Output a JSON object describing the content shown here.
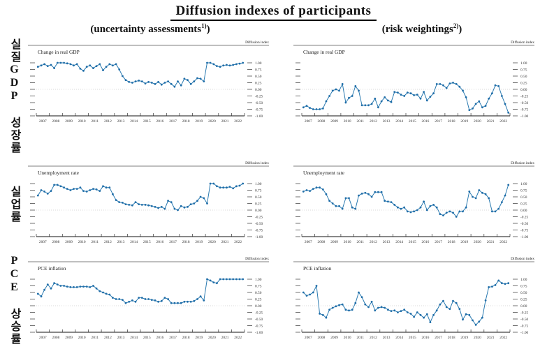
{
  "header": {
    "title": "Diffusion indexes of participants",
    "left_subtitle": {
      "text": "(uncertainty assessments",
      "sup": "1)",
      "close": ")"
    },
    "right_subtitle": {
      "text": "(risk weightings",
      "sup": "2)",
      "close": ")"
    }
  },
  "row_labels": [
    "실질GDP 성장률",
    "실업률",
    "PCE 상승률"
  ],
  "colors": {
    "line": "#2a7ab0",
    "dot": "#1f6da8",
    "zero_line": "#b5b5b5",
    "axis": "#111111"
  },
  "chart_data": [
    {
      "type": "line",
      "title": "Change in real GDP",
      "column": "uncertainty assessments",
      "axis_label": "Diffusion index",
      "frequency": "quarterly",
      "ylim": [
        -1.0,
        1.0
      ],
      "yticks": [
        "1.00",
        "0.75",
        "0.50",
        "0.25",
        "0.00",
        "-0.25",
        "-0.50",
        "-0.75",
        "-1.00"
      ],
      "years": [
        2007,
        2008,
        2009,
        2010,
        2011,
        2012,
        2013,
        2014,
        2015,
        2016,
        2017,
        2018,
        2019,
        2020,
        2021,
        2022
      ],
      "values": [
        0.85,
        0.9,
        0.95,
        0.88,
        0.92,
        0.8,
        1.0,
        1.0,
        1.0,
        0.98,
        0.95,
        0.9,
        0.95,
        0.78,
        0.7,
        0.85,
        0.9,
        0.8,
        0.88,
        0.95,
        0.72,
        0.85,
        0.95,
        0.9,
        0.95,
        0.75,
        0.5,
        0.35,
        0.28,
        0.25,
        0.3,
        0.33,
        0.3,
        0.22,
        0.28,
        0.25,
        0.2,
        0.28,
        0.18,
        0.25,
        0.3,
        0.2,
        0.1,
        0.3,
        0.15,
        0.4,
        0.35,
        0.2,
        0.3,
        0.42,
        0.4,
        0.3,
        1.0,
        1.0,
        0.95,
        0.88,
        0.85,
        0.9,
        0.92,
        0.9,
        0.92,
        0.95,
        0.97,
        1.0
      ]
    },
    {
      "type": "line",
      "title": "Change in real GDP",
      "column": "risk weightings",
      "axis_label": "Diffusion index",
      "frequency": "quarterly",
      "ylim": [
        -1.0,
        1.0
      ],
      "yticks": [
        "1.00",
        "0.75",
        "0.50",
        "0.25",
        "0.00",
        "-0.25",
        "-0.50",
        "-0.75",
        "-1.00"
      ],
      "years": [
        2007,
        2008,
        2009,
        2010,
        2011,
        2012,
        2013,
        2014,
        2015,
        2016,
        2017,
        2018,
        2019,
        2020,
        2021,
        2022
      ],
      "values": [
        -0.68,
        -0.62,
        -0.7,
        -0.75,
        -0.75,
        -0.75,
        -0.72,
        -0.45,
        -0.25,
        -0.05,
        0.0,
        -0.05,
        0.2,
        -0.5,
        -0.32,
        -0.25,
        0.12,
        -0.05,
        -0.6,
        -0.6,
        -0.6,
        -0.55,
        -0.35,
        -0.68,
        -0.45,
        -0.3,
        -0.42,
        -0.48,
        -0.1,
        -0.12,
        -0.2,
        -0.25,
        -0.12,
        -0.15,
        -0.22,
        -0.2,
        -0.35,
        -0.1,
        -0.42,
        -0.28,
        -0.15,
        0.2,
        0.2,
        0.15,
        0.05,
        0.22,
        0.25,
        0.2,
        0.1,
        -0.05,
        -0.3,
        -0.78,
        -0.72,
        -0.55,
        -0.45,
        -0.68,
        -0.62,
        -0.35,
        -0.15,
        0.15,
        0.12,
        -0.25,
        -0.55,
        -0.88
      ]
    },
    {
      "type": "line",
      "title": "Unemployment rate",
      "column": "uncertainty assessments",
      "axis_label": "Diffusion index",
      "frequency": "quarterly",
      "ylim": [
        -1.0,
        1.0
      ],
      "yticks": [
        "1.00",
        "0.75",
        "0.50",
        "0.25",
        "0.00",
        "-0.25",
        "-0.50",
        "-0.75",
        "-1.00"
      ],
      "years": [
        2007,
        2008,
        2009,
        2010,
        2011,
        2012,
        2013,
        2014,
        2015,
        2016,
        2017,
        2018,
        2019,
        2020,
        2021,
        2022
      ],
      "values": [
        0.55,
        0.75,
        0.7,
        0.62,
        0.72,
        0.95,
        0.95,
        0.9,
        0.85,
        0.8,
        0.75,
        0.8,
        0.8,
        0.85,
        0.72,
        0.7,
        0.75,
        0.8,
        0.78,
        0.72,
        0.9,
        0.85,
        0.85,
        0.6,
        0.38,
        0.3,
        0.28,
        0.22,
        0.2,
        0.18,
        0.3,
        0.22,
        0.2,
        0.2,
        0.18,
        0.15,
        0.12,
        0.08,
        0.12,
        0.05,
        0.35,
        0.3,
        0.05,
        0.0,
        0.15,
        0.1,
        0.12,
        0.22,
        0.25,
        0.35,
        0.5,
        0.45,
        0.25,
        1.0,
        1.0,
        0.9,
        0.85,
        0.85,
        0.85,
        0.88,
        0.82,
        0.9,
        0.92,
        1.0
      ]
    },
    {
      "type": "line",
      "title": "Unemployment rate",
      "column": "risk weightings",
      "axis_label": "Diffusion index",
      "frequency": "quarterly",
      "ylim": [
        -1.0,
        1.0
      ],
      "yticks": [
        "1.00",
        "0.75",
        "0.50",
        "0.25",
        "0.00",
        "-0.25",
        "-0.50",
        "-0.75",
        "-1.00"
      ],
      "years": [
        2007,
        2008,
        2009,
        2010,
        2011,
        2012,
        2013,
        2014,
        2015,
        2016,
        2017,
        2018,
        2019,
        2020,
        2021,
        2022
      ],
      "values": [
        0.7,
        0.75,
        0.72,
        0.8,
        0.85,
        0.85,
        0.78,
        0.6,
        0.35,
        0.25,
        0.15,
        0.15,
        0.05,
        0.45,
        0.45,
        0.1,
        0.05,
        0.55,
        0.62,
        0.65,
        0.6,
        0.5,
        0.68,
        0.68,
        0.68,
        0.35,
        0.32,
        0.3,
        0.2,
        0.1,
        0.05,
        0.1,
        -0.05,
        -0.08,
        -0.05,
        0.0,
        0.1,
        0.32,
        0.0,
        0.15,
        0.2,
        0.1,
        -0.15,
        -0.2,
        -0.1,
        -0.05,
        -0.1,
        -0.25,
        -0.05,
        -0.05,
        0.1,
        0.7,
        0.5,
        0.45,
        0.75,
        0.65,
        0.6,
        0.45,
        -0.05,
        -0.05,
        0.05,
        0.3,
        0.55,
        0.95
      ]
    },
    {
      "type": "line",
      "title": "PCE inflation",
      "column": "uncertainty assessments",
      "axis_label": "Diffusion index",
      "frequency": "quarterly",
      "ylim": [
        -1.0,
        1.0
      ],
      "yticks": [
        "1.00",
        "0.75",
        "0.50",
        "0.25",
        "0.00",
        "-0.25",
        "-0.50",
        "-0.75",
        "-1.00"
      ],
      "years": [
        2007,
        2008,
        2009,
        2010,
        2011,
        2012,
        2013,
        2014,
        2015,
        2016,
        2017,
        2018,
        2019,
        2020,
        2021,
        2022
      ],
      "values": [
        0.45,
        0.35,
        0.6,
        0.8,
        0.65,
        0.85,
        0.8,
        0.75,
        0.75,
        0.72,
        0.7,
        0.7,
        0.7,
        0.72,
        0.72,
        0.72,
        0.7,
        0.75,
        0.65,
        0.55,
        0.5,
        0.45,
        0.42,
        0.3,
        0.25,
        0.25,
        0.22,
        0.1,
        0.15,
        0.2,
        0.15,
        0.3,
        0.3,
        0.25,
        0.25,
        0.22,
        0.2,
        0.15,
        0.18,
        0.3,
        0.25,
        0.1,
        0.1,
        0.1,
        0.1,
        0.15,
        0.15,
        0.15,
        0.18,
        0.25,
        0.35,
        0.2,
        1.0,
        0.95,
        0.88,
        0.85,
        1.0,
        1.0,
        1.0,
        1.0,
        1.0,
        1.0,
        1.0,
        1.0
      ]
    },
    {
      "type": "line",
      "title": "PCE inflation",
      "column": "risk weightings",
      "axis_label": "Diffusion index",
      "frequency": "quarterly",
      "ylim": [
        -1.0,
        1.0
      ],
      "yticks": [
        "1.00",
        "0.75",
        "0.50",
        "0.25",
        "0.00",
        "-0.25",
        "-0.50",
        "-0.75",
        "-1.00"
      ],
      "years": [
        2007,
        2008,
        2009,
        2010,
        2011,
        2012,
        2013,
        2014,
        2015,
        2016,
        2017,
        2018,
        2019,
        2020,
        2021,
        2022
      ],
      "values": [
        0.5,
        0.38,
        0.42,
        0.5,
        0.75,
        -0.3,
        -0.35,
        -0.45,
        -0.15,
        -0.08,
        -0.02,
        0.02,
        0.05,
        -0.15,
        -0.18,
        -0.15,
        0.1,
        0.5,
        0.32,
        0.05,
        -0.05,
        0.15,
        -0.18,
        -0.08,
        -0.05,
        -0.08,
        -0.15,
        -0.2,
        -0.18,
        -0.25,
        -0.2,
        -0.15,
        -0.25,
        -0.3,
        -0.42,
        -0.25,
        -0.35,
        -0.45,
        -0.32,
        -0.62,
        -0.35,
        -0.18,
        0.05,
        0.18,
        -0.05,
        -0.12,
        0.18,
        0.1,
        -0.12,
        -0.52,
        -0.32,
        -0.35,
        -0.55,
        -0.72,
        -0.6,
        -0.45,
        0.2,
        0.7,
        0.72,
        0.78,
        0.95,
        0.85,
        0.82,
        0.85
      ]
    }
  ]
}
